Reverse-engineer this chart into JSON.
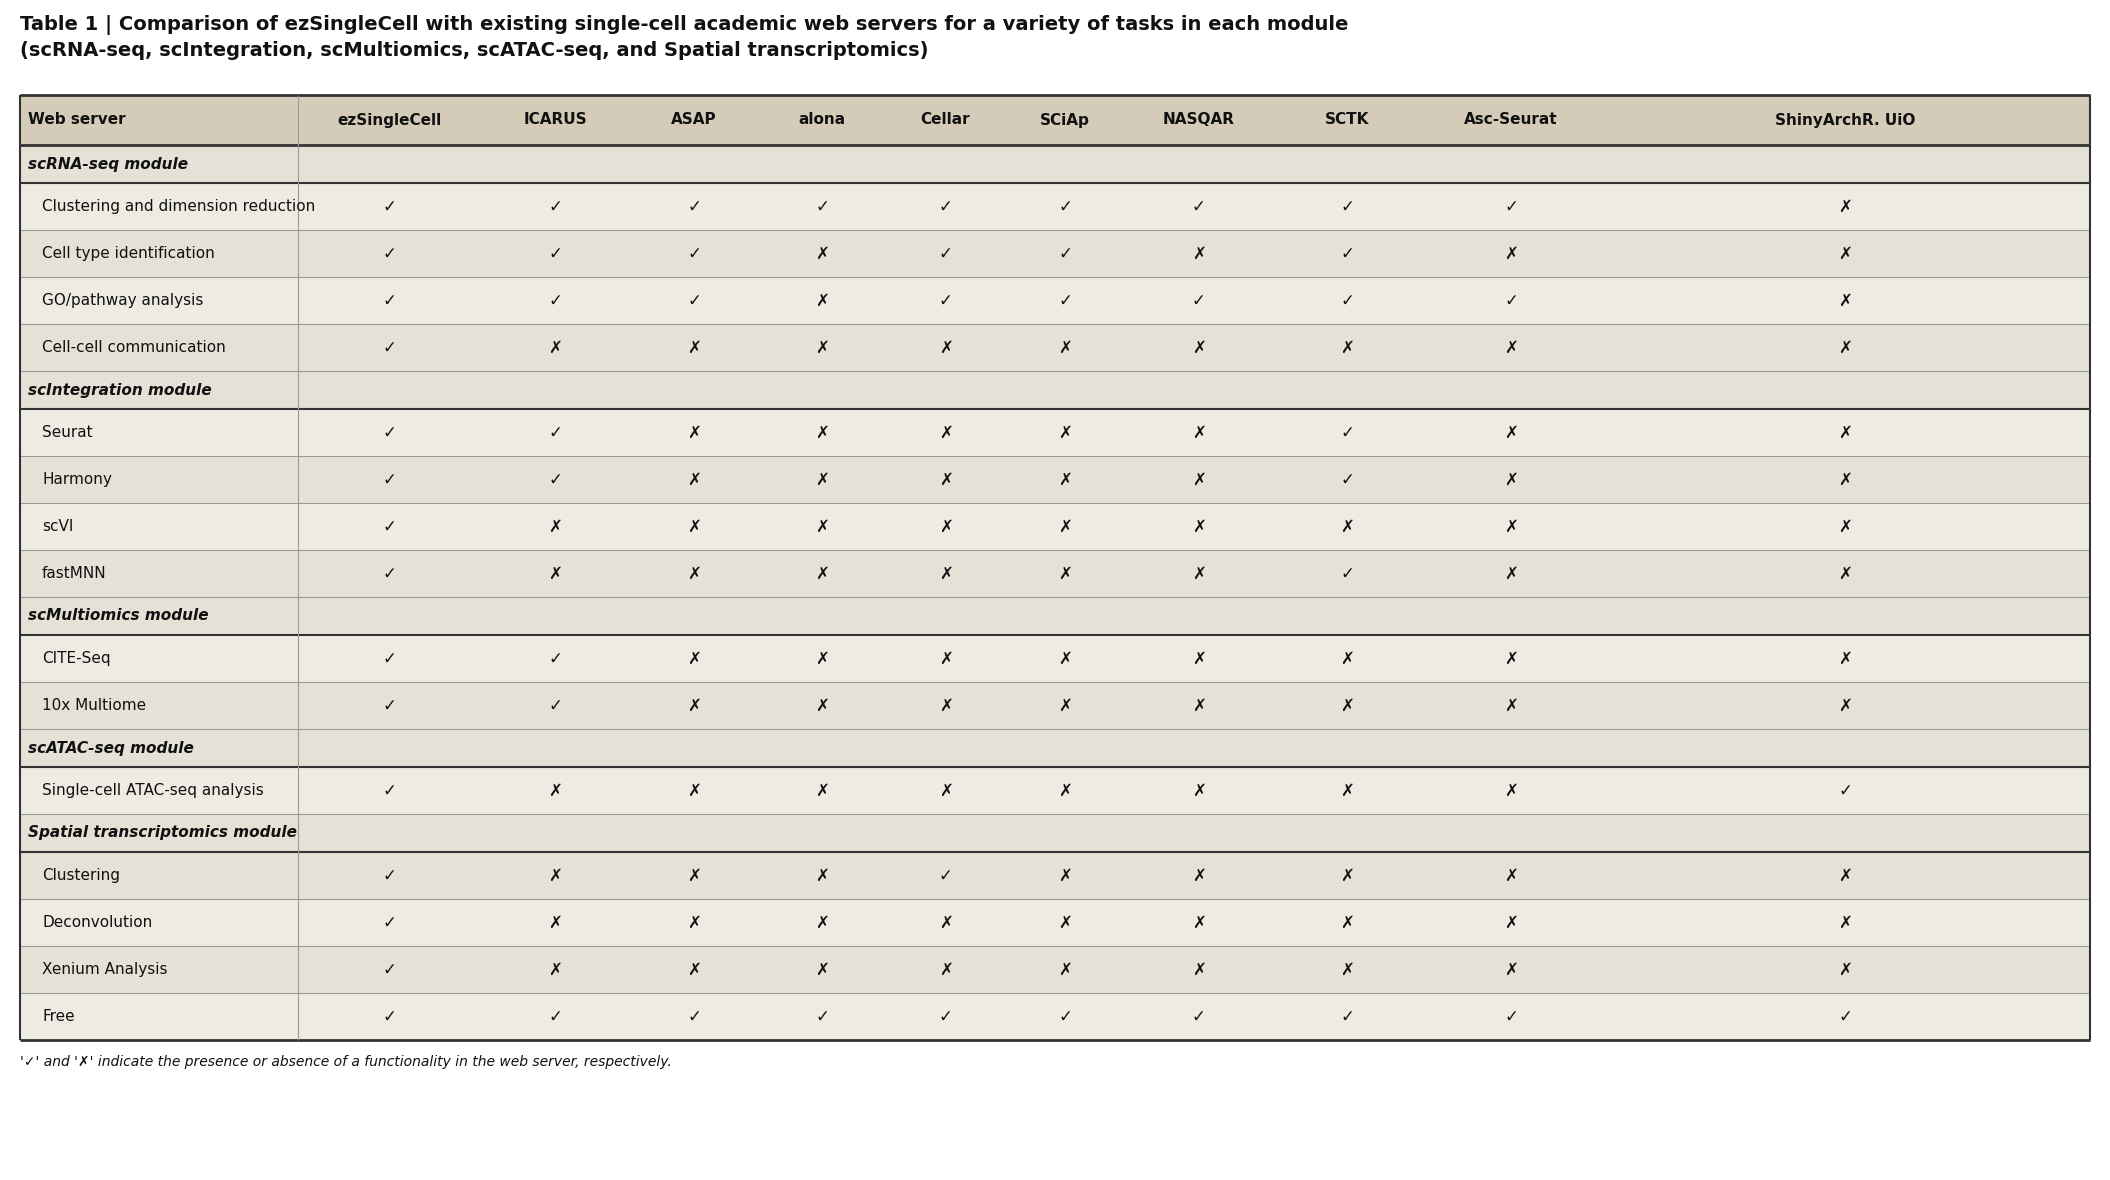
{
  "title_line1": "Table 1 | Comparison of ezSingleCell with existing single-cell academic web servers for a variety of tasks in each module",
  "title_line2": "(scRNA-seq, scIntegration, scMultiomics, scATAC-seq, and Spatial transcriptomics)",
  "columns": [
    "Web server",
    "ezSingleCell",
    "ICARUS",
    "ASAP",
    "alona",
    "Cellar",
    "SCiAp",
    "NASQAR",
    "SCTK",
    "Asc-Seurat",
    "ShinyArchR. UiO"
  ],
  "data_rows": [
    {
      "label": "Clustering and dimension reduction",
      "values": [
        1,
        1,
        1,
        1,
        1,
        1,
        1,
        1,
        1,
        0
      ],
      "type": "data"
    },
    {
      "label": "Cell type identification",
      "values": [
        1,
        1,
        1,
        0,
        1,
        1,
        0,
        1,
        0,
        0
      ],
      "type": "data"
    },
    {
      "label": "GO/pathway analysis",
      "values": [
        1,
        1,
        1,
        0,
        1,
        1,
        1,
        1,
        1,
        0
      ],
      "type": "data"
    },
    {
      "label": "Cell-cell communication",
      "values": [
        1,
        0,
        0,
        0,
        0,
        0,
        0,
        0,
        0,
        0
      ],
      "type": "data"
    },
    {
      "label": "Seurat",
      "values": [
        1,
        1,
        0,
        0,
        0,
        0,
        0,
        1,
        0,
        0
      ],
      "type": "data"
    },
    {
      "label": "Harmony",
      "values": [
        1,
        1,
        0,
        0,
        0,
        0,
        0,
        1,
        0,
        0
      ],
      "type": "data"
    },
    {
      "label": "scVI",
      "values": [
        1,
        0,
        0,
        0,
        0,
        0,
        0,
        0,
        0,
        0
      ],
      "type": "data"
    },
    {
      "label": "fastMNN",
      "values": [
        1,
        0,
        0,
        0,
        0,
        0,
        0,
        1,
        0,
        0
      ],
      "type": "data"
    },
    {
      "label": "CITE-Seq",
      "values": [
        1,
        1,
        0,
        0,
        0,
        0,
        0,
        0,
        0,
        0
      ],
      "type": "data"
    },
    {
      "label": "10x Multiome",
      "values": [
        1,
        1,
        0,
        0,
        0,
        0,
        0,
        0,
        0,
        0
      ],
      "type": "data"
    },
    {
      "label": "Single-cell ATAC-seq analysis",
      "values": [
        1,
        0,
        0,
        0,
        0,
        0,
        0,
        0,
        0,
        1
      ],
      "type": "data"
    },
    {
      "label": "Clustering",
      "values": [
        1,
        0,
        0,
        0,
        1,
        0,
        0,
        0,
        0,
        0
      ],
      "type": "data"
    },
    {
      "label": "Deconvolution",
      "values": [
        1,
        0,
        0,
        0,
        0,
        0,
        0,
        0,
        0,
        0
      ],
      "type": "data"
    },
    {
      "label": "Xenium Analysis",
      "values": [
        1,
        0,
        0,
        0,
        0,
        0,
        0,
        0,
        0,
        0
      ],
      "type": "data"
    },
    {
      "label": "Free",
      "values": [
        1,
        1,
        1,
        1,
        1,
        1,
        1,
        1,
        1,
        1
      ],
      "type": "data"
    }
  ],
  "footer": "'✓' and '✗' indicate the presence or absence of a functionality in the web server, respectively.",
  "check_char": "✓",
  "cross_char": "✗",
  "bg_color_header": "#d4ccb8",
  "bg_color_section": "#e5e1d6",
  "bg_color_row_odd": "#eeebe3",
  "bg_color_row_even": "#e5e1d6",
  "bg_color_white": "#ffffff",
  "text_color_dark": "#111111",
  "border_color_light": "#999999",
  "border_color_thick": "#333333",
  "title_fontsize": 14,
  "header_fontsize": 11,
  "section_fontsize": 11,
  "cell_fontsize": 11,
  "symbol_fontsize": 12
}
